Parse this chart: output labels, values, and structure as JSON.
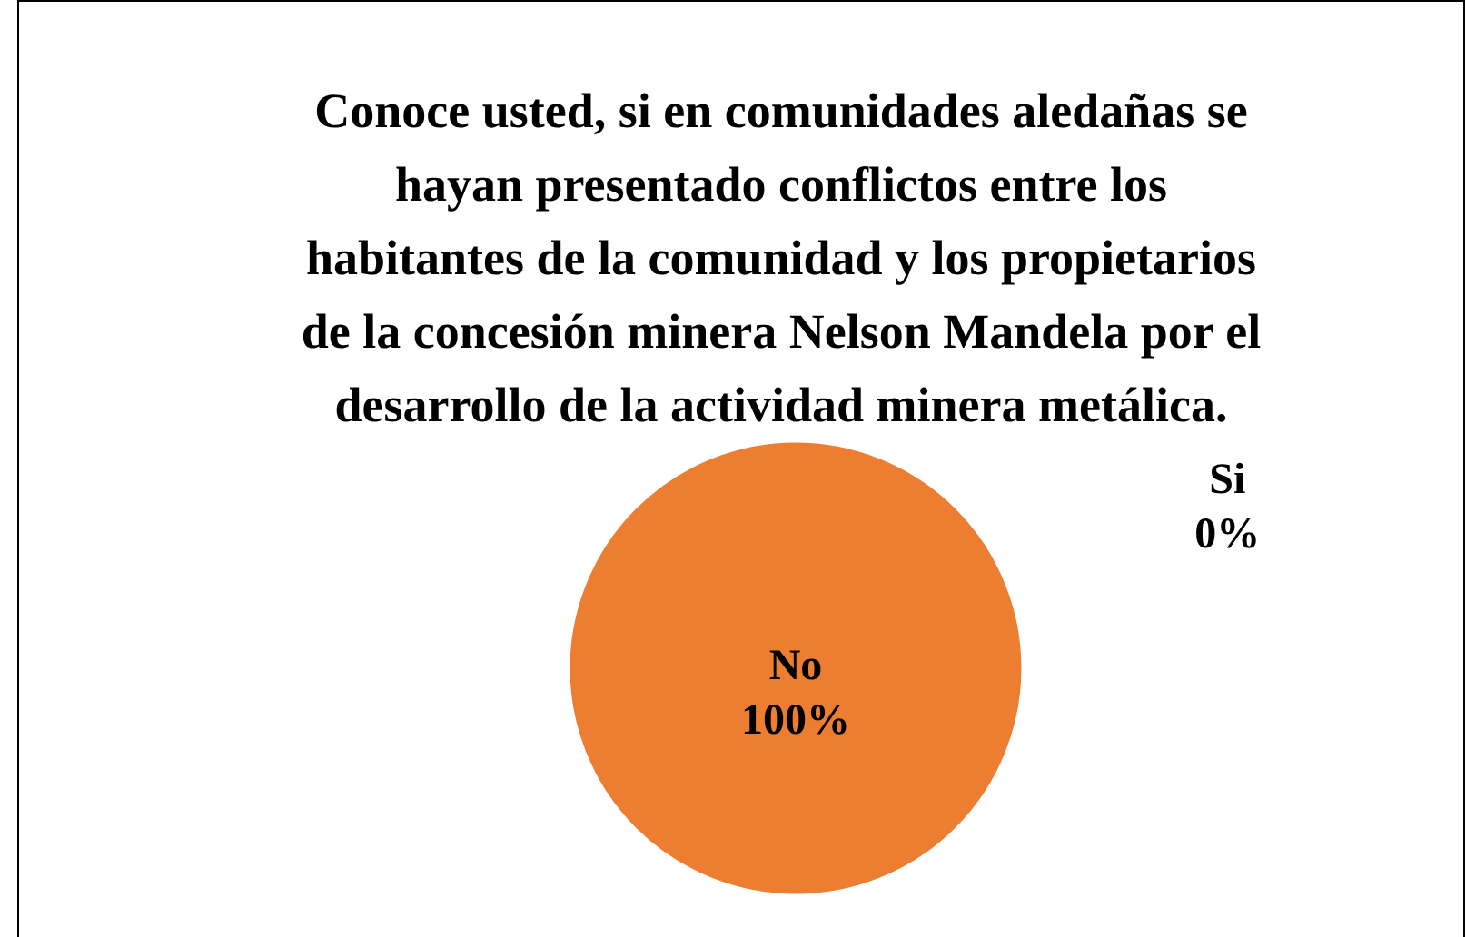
{
  "chart_data": {
    "type": "pie",
    "title": "Conoce usted, si en comunidades aledañas se hayan presentado conflictos entre los habitantes de la comunidad y los propietarios de la concesión minera Nelson Mandela por el desarrollo de la actividad minera metálica.",
    "categories": [
      "Si",
      "No"
    ],
    "values": [
      0,
      100
    ],
    "colors": [
      "#4472c4",
      "#ed7d31"
    ],
    "value_labels": [
      "0%",
      "100%"
    ]
  }
}
